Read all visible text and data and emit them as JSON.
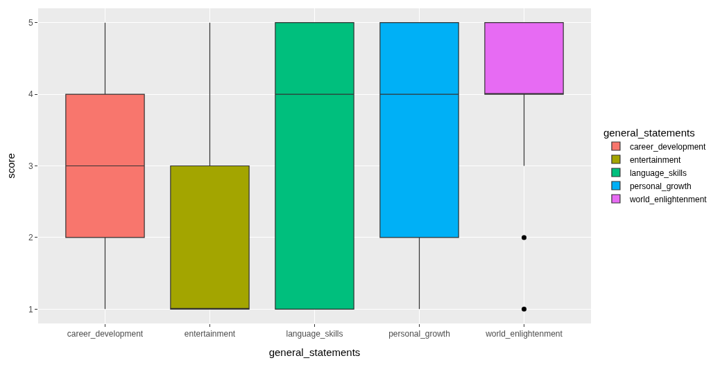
{
  "chart_data": {
    "type": "box",
    "xlabel": "general_statements",
    "ylabel": "score",
    "legend_title": "general_statements",
    "categories": [
      "career_development",
      "entertainment",
      "language_skills",
      "personal_growth",
      "world_enlightenment"
    ],
    "series": [
      {
        "name": "career_development",
        "color": "#f8766d",
        "boxes": [
          {
            "low": 1,
            "q1": 2,
            "median": 3,
            "q3": 4,
            "high": 5
          },
          null,
          null,
          null,
          null
        ]
      },
      {
        "name": "entertainment",
        "color": "#a3a500",
        "boxes": [
          null,
          {
            "low": 1,
            "q1": 1,
            "median": 1,
            "q3": 3,
            "high": 5
          },
          null,
          null,
          null
        ]
      },
      {
        "name": "language_skills",
        "color": "#00bf7d",
        "boxes": [
          null,
          null,
          {
            "low": 1,
            "q1": 1,
            "median": 4,
            "q3": 5,
            "high": 5
          },
          null,
          null
        ]
      },
      {
        "name": "personal_growth",
        "color": "#00b0f6",
        "boxes": [
          null,
          null,
          null,
          {
            "low": 1,
            "q1": 2,
            "median": 4,
            "q3": 5,
            "high": 5
          },
          null
        ]
      },
      {
        "name": "world_enlightenment",
        "color": "#e76bf3",
        "boxes": [
          null,
          null,
          null,
          null,
          {
            "low": 3,
            "q1": 4,
            "median": 4,
            "q3": 5,
            "high": 5,
            "outliers": [
              2,
              1
            ]
          }
        ]
      }
    ],
    "ylim": [
      0.8,
      5.2
    ],
    "yticks": [
      1,
      2,
      3,
      4,
      5
    ],
    "grid": true,
    "legend": "right"
  }
}
